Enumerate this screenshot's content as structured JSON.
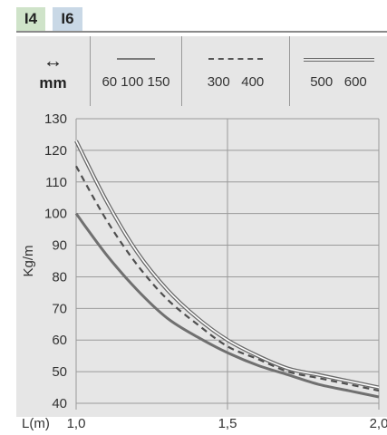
{
  "tabs": [
    {
      "label": "I4",
      "color": "#cfe3c9"
    },
    {
      "label": "I6",
      "color": "#c9d8e6"
    }
  ],
  "legend": {
    "unit_label": "mm",
    "unit_icon": "left-right-arrow-icon",
    "entries": [
      {
        "label": "60 100 150",
        "style": "solid"
      },
      {
        "label": "300   400",
        "style": "dashed"
      },
      {
        "label": "500   600",
        "style": "double"
      }
    ]
  },
  "chart_data": {
    "type": "line",
    "title": "",
    "xlabel": "L(m)",
    "ylabel": "Kg/m",
    "xlim": [
      1.0,
      2.0
    ],
    "ylim": [
      40,
      130
    ],
    "x_ticks": [
      "1,0",
      "1,5",
      "2,0"
    ],
    "y_ticks": [
      40,
      50,
      60,
      70,
      80,
      90,
      100,
      110,
      120,
      130
    ],
    "grid": true,
    "series": [
      {
        "name": "60 100 150",
        "style": "solid",
        "x": [
          1.0,
          1.1,
          1.2,
          1.3,
          1.4,
          1.5,
          1.6,
          1.7,
          1.8,
          1.9,
          2.0
        ],
        "y": [
          100,
          87,
          76,
          67,
          61,
          56,
          52,
          49,
          46,
          44,
          42
        ]
      },
      {
        "name": "300   400",
        "style": "dashed",
        "x": [
          1.0,
          1.1,
          1.2,
          1.3,
          1.4,
          1.5,
          1.6,
          1.7,
          1.8,
          1.9,
          2.0
        ],
        "y": [
          115,
          98,
          84,
          73,
          65,
          58,
          54,
          50,
          48,
          46,
          44
        ]
      },
      {
        "name": "500   600",
        "style": "double",
        "x": [
          1.0,
          1.1,
          1.2,
          1.3,
          1.4,
          1.5,
          1.6,
          1.7,
          1.8,
          1.9,
          2.0
        ],
        "y": [
          123,
          104,
          88,
          76,
          67,
          60,
          55,
          51,
          49,
          47,
          45
        ]
      }
    ]
  }
}
